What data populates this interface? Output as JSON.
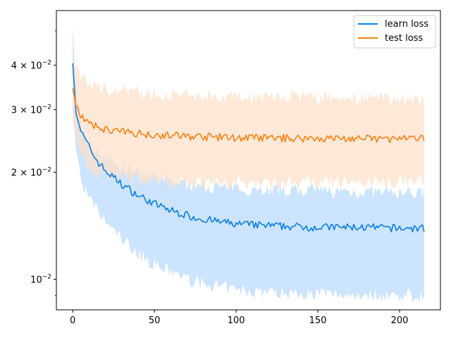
{
  "chart_data": {
    "type": "line",
    "title": "",
    "xlabel": "",
    "ylabel": "",
    "xlim": [
      -10,
      225
    ],
    "ylim": [
      0.0082,
      0.057
    ],
    "yscale": "log",
    "x_ticks": [
      0,
      50,
      100,
      150,
      200
    ],
    "x_tick_labels": [
      "0",
      "50",
      "100",
      "150",
      "200"
    ],
    "y_ticks": [
      0.01,
      0.02,
      0.03,
      0.04
    ],
    "y_tick_labels": [
      {
        "base": "10",
        "exp": "−2",
        "mult": ""
      },
      {
        "base": "10",
        "exp": "−2",
        "mult": "2 × "
      },
      {
        "base": "10",
        "exp": "−2",
        "mult": "3 × "
      },
      {
        "base": "10",
        "exp": "−2",
        "mult": "4 × "
      }
    ],
    "legend_position": "top-right",
    "grid": false,
    "x_range": [
      0,
      215
    ],
    "series": [
      {
        "name": "learn loss",
        "color": "#0a7ee6",
        "band_color": "#cce4fd",
        "keypoints": [
          [
            0,
            0.0405
          ],
          [
            2,
            0.03
          ],
          [
            5,
            0.026
          ],
          [
            10,
            0.0235
          ],
          [
            15,
            0.0215
          ],
          [
            20,
            0.0202
          ],
          [
            30,
            0.0185
          ],
          [
            40,
            0.0172
          ],
          [
            50,
            0.0163
          ],
          [
            60,
            0.0156
          ],
          [
            75,
            0.0149
          ],
          [
            90,
            0.0145
          ],
          [
            100,
            0.0143
          ],
          [
            125,
            0.0141
          ],
          [
            150,
            0.014
          ],
          [
            175,
            0.014
          ],
          [
            200,
            0.0139
          ],
          [
            215,
            0.0139
          ]
        ],
        "upper_keypoints": [
          [
            0,
            0.052
          ],
          [
            2,
            0.033
          ],
          [
            5,
            0.027
          ],
          [
            10,
            0.024
          ],
          [
            20,
            0.022
          ],
          [
            30,
            0.0207
          ],
          [
            40,
            0.0198
          ],
          [
            50,
            0.0192
          ],
          [
            75,
            0.0184
          ],
          [
            100,
            0.018
          ],
          [
            150,
            0.0177
          ],
          [
            200,
            0.0175
          ],
          [
            215,
            0.0175
          ]
        ],
        "lower_keypoints": [
          [
            0,
            0.031
          ],
          [
            2,
            0.0235
          ],
          [
            5,
            0.019
          ],
          [
            10,
            0.0168
          ],
          [
            20,
            0.0145
          ],
          [
            30,
            0.013
          ],
          [
            40,
            0.0118
          ],
          [
            50,
            0.011
          ],
          [
            75,
            0.0098
          ],
          [
            100,
            0.0093
          ],
          [
            150,
            0.0091
          ],
          [
            200,
            0.009
          ],
          [
            215,
            0.009
          ]
        ]
      },
      {
        "name": "test loss",
        "color": "#fd7f0e",
        "band_color": "#fee0c8",
        "keypoints": [
          [
            0,
            0.0345
          ],
          [
            2,
            0.031
          ],
          [
            5,
            0.029
          ],
          [
            10,
            0.0272
          ],
          [
            20,
            0.0264
          ],
          [
            30,
            0.026
          ],
          [
            50,
            0.0255
          ],
          [
            75,
            0.0252
          ],
          [
            100,
            0.025
          ],
          [
            150,
            0.0249
          ],
          [
            200,
            0.0248
          ],
          [
            215,
            0.0248
          ]
        ],
        "upper_keypoints": [
          [
            0,
            0.041
          ],
          [
            3,
            0.039
          ],
          [
            5,
            0.037
          ],
          [
            10,
            0.0355
          ],
          [
            20,
            0.0345
          ],
          [
            40,
            0.0335
          ],
          [
            60,
            0.033
          ],
          [
            100,
            0.0327
          ],
          [
            150,
            0.0325
          ],
          [
            200,
            0.0322
          ],
          [
            215,
            0.032
          ]
        ],
        "lower_keypoints": [
          [
            0,
            0.028
          ],
          [
            2,
            0.025
          ],
          [
            5,
            0.0225
          ],
          [
            10,
            0.0205
          ],
          [
            20,
            0.0195
          ],
          [
            40,
            0.019
          ],
          [
            60,
            0.0188
          ],
          [
            100,
            0.0187
          ],
          [
            150,
            0.0187
          ],
          [
            200,
            0.0188
          ],
          [
            215,
            0.0189
          ]
        ]
      }
    ]
  }
}
